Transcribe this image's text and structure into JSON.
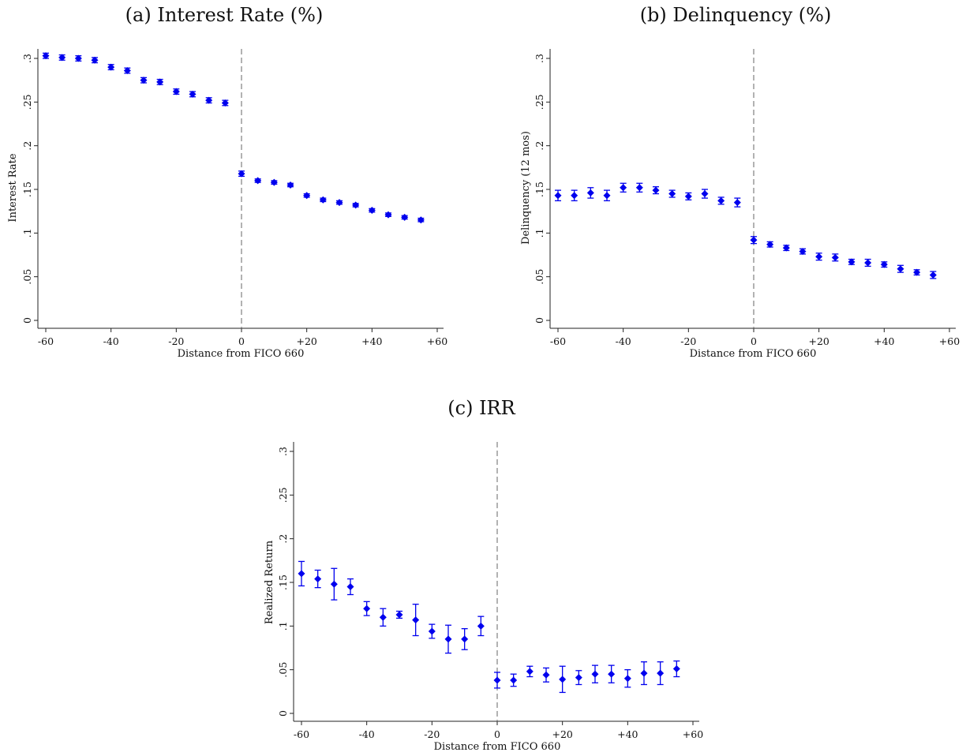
{
  "chart_data": [
    {
      "type": "scatter",
      "title": "(a) Interest Rate (%)",
      "xlabel": "Distance from FICO 660",
      "ylabel": "Interest Rate",
      "xlim": [
        -60,
        60
      ],
      "ylim": [
        0,
        0.3
      ],
      "xticks": [
        -60,
        -40,
        -20,
        0,
        20,
        40,
        60
      ],
      "xtick_labels": [
        "-60",
        "-40",
        "-20",
        "0",
        "+20",
        "+40",
        "+60"
      ],
      "yticks": [
        0,
        0.05,
        0.1,
        0.15,
        0.2,
        0.25,
        0.3
      ],
      "ytick_labels": [
        "0",
        ".05",
        ".1",
        ".15",
        ".2",
        ".25",
        ".3"
      ],
      "cutoff": 0,
      "grid": false,
      "marker_color": "#0000ee",
      "x": [
        -60,
        -55,
        -50,
        -45,
        -40,
        -35,
        -30,
        -25,
        -20,
        -15,
        -10,
        -5,
        0,
        5,
        10,
        15,
        20,
        25,
        30,
        35,
        40,
        45,
        50,
        55
      ],
      "y": [
        0.303,
        0.301,
        0.3,
        0.298,
        0.29,
        0.286,
        0.275,
        0.273,
        0.262,
        0.259,
        0.252,
        0.249,
        0.168,
        0.16,
        0.158,
        0.155,
        0.143,
        0.138,
        0.135,
        0.132,
        0.126,
        0.121,
        0.118,
        0.115
      ],
      "err": [
        0.003,
        0.003,
        0.003,
        0.003,
        0.003,
        0.003,
        0.003,
        0.003,
        0.003,
        0.003,
        0.003,
        0.003,
        0.003,
        0.002,
        0.002,
        0.002,
        0.002,
        0.002,
        0.002,
        0.002,
        0.002,
        0.002,
        0.002,
        0.002
      ]
    },
    {
      "type": "scatter",
      "title": "(b) Delinquency (%)",
      "xlabel": "Distance from FICO 660",
      "ylabel": "Delinquency (12 mos)",
      "xlim": [
        -60,
        60
      ],
      "ylim": [
        0,
        0.3
      ],
      "xticks": [
        -60,
        -40,
        -20,
        0,
        20,
        40,
        60
      ],
      "xtick_labels": [
        "-60",
        "-40",
        "-20",
        "0",
        "+20",
        "+40",
        "+60"
      ],
      "yticks": [
        0,
        0.05,
        0.1,
        0.15,
        0.2,
        0.25,
        0.3
      ],
      "ytick_labels": [
        "0",
        ".05",
        ".1",
        ".15",
        ".2",
        ".25",
        ".3"
      ],
      "cutoff": 0,
      "grid": false,
      "marker_color": "#0000ee",
      "x": [
        -60,
        -55,
        -50,
        -45,
        -40,
        -35,
        -30,
        -25,
        -20,
        -15,
        -10,
        -5,
        0,
        5,
        10,
        15,
        20,
        25,
        30,
        35,
        40,
        45,
        50,
        55
      ],
      "y": [
        0.143,
        0.143,
        0.146,
        0.143,
        0.152,
        0.152,
        0.149,
        0.145,
        0.142,
        0.145,
        0.137,
        0.135,
        0.092,
        0.087,
        0.083,
        0.079,
        0.073,
        0.072,
        0.067,
        0.066,
        0.064,
        0.059,
        0.055,
        0.052
      ],
      "err": [
        0.006,
        0.006,
        0.006,
        0.006,
        0.005,
        0.005,
        0.004,
        0.004,
        0.004,
        0.005,
        0.004,
        0.005,
        0.004,
        0.003,
        0.003,
        0.003,
        0.004,
        0.004,
        0.003,
        0.004,
        0.003,
        0.004,
        0.003,
        0.004
      ]
    },
    {
      "type": "scatter",
      "title": "(c) IRR",
      "xlabel": "Distance from FICO 660",
      "ylabel": "Realized Return",
      "xlim": [
        -60,
        60
      ],
      "ylim": [
        0,
        0.3
      ],
      "xticks": [
        -60,
        -40,
        -20,
        0,
        20,
        40,
        60
      ],
      "xtick_labels": [
        "-60",
        "-40",
        "-20",
        "0",
        "+20",
        "+40",
        "+60"
      ],
      "yticks": [
        0,
        0.05,
        0.1,
        0.15,
        0.2,
        0.25,
        0.3
      ],
      "ytick_labels": [
        "0",
        ".05",
        ".1",
        ".15",
        ".2",
        ".25",
        ".3"
      ],
      "cutoff": 0,
      "grid": false,
      "marker_color": "#0000ee",
      "x": [
        -60,
        -55,
        -50,
        -45,
        -40,
        -35,
        -30,
        -25,
        -20,
        -15,
        -10,
        -5,
        0,
        5,
        10,
        15,
        20,
        25,
        30,
        35,
        40,
        45,
        50,
        55
      ],
      "y": [
        0.16,
        0.154,
        0.148,
        0.145,
        0.12,
        0.11,
        0.113,
        0.107,
        0.094,
        0.085,
        0.085,
        0.1,
        0.038,
        0.038,
        0.048,
        0.044,
        0.039,
        0.041,
        0.045,
        0.045,
        0.04,
        0.046,
        0.046,
        0.051
      ],
      "err": [
        0.014,
        0.01,
        0.018,
        0.009,
        0.008,
        0.01,
        0.004,
        0.018,
        0.008,
        0.016,
        0.012,
        0.011,
        0.009,
        0.007,
        0.006,
        0.008,
        0.015,
        0.008,
        0.01,
        0.01,
        0.01,
        0.013,
        0.013,
        0.009
      ]
    }
  ]
}
